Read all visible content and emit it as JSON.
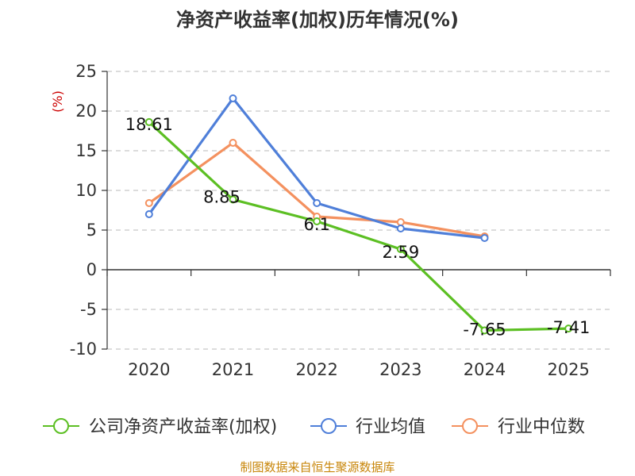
{
  "chart_data": {
    "type": "line",
    "title": "净资产收益率(加权)历年情况(%)",
    "unit_label": "(%)",
    "categories": [
      "2020",
      "2021",
      "2022",
      "2023",
      "2024",
      "2025"
    ],
    "ylim": [
      -10,
      25
    ],
    "yticks": [
      25,
      20,
      15,
      10,
      5,
      0,
      -5,
      -10
    ],
    "grid": true,
    "legend_position": "bottom",
    "series": [
      {
        "key": "company",
        "name": "公司净资产收益率(加权)",
        "color": "#5cbf23",
        "values": [
          18.61,
          8.85,
          6.1,
          2.59,
          -7.65,
          -7.41
        ],
        "labels": [
          "18.61",
          "8.85",
          "6.1",
          "2.59",
          "-7.65",
          "-7.41"
        ]
      },
      {
        "key": "industry_avg",
        "name": "行业均值",
        "color": "#4f7fd9",
        "values": [
          7.0,
          21.6,
          8.4,
          5.2,
          4.0,
          null
        ]
      },
      {
        "key": "industry_median",
        "name": "行业中位数",
        "color": "#f4915f",
        "values": [
          8.4,
          16.0,
          6.7,
          6.0,
          4.2,
          null
        ]
      }
    ]
  },
  "footer": {
    "source": "制图数据来自恒生聚源数据库"
  }
}
